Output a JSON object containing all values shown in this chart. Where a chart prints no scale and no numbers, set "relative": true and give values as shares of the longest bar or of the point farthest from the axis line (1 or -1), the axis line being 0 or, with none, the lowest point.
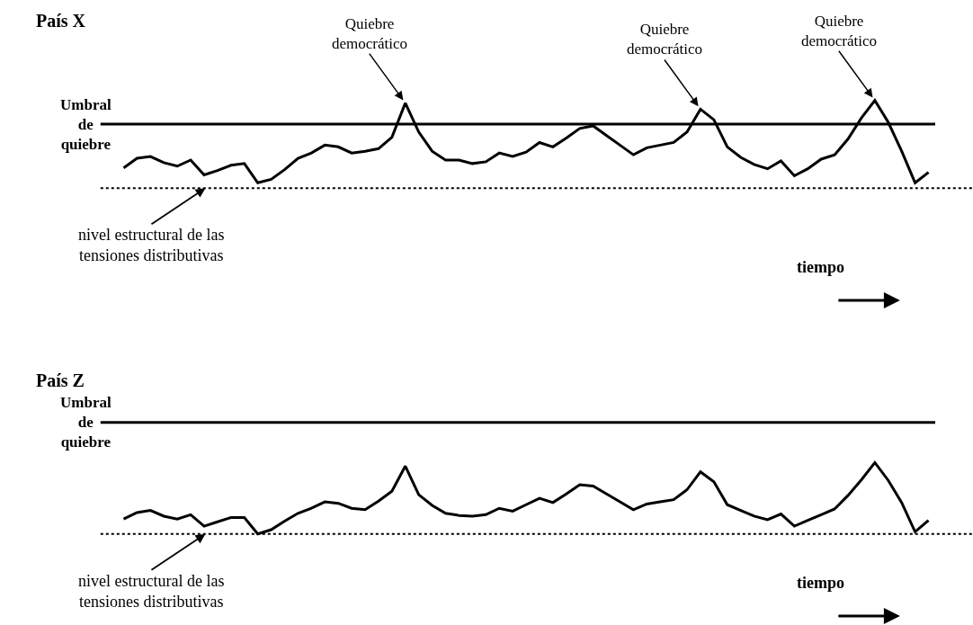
{
  "chart_data": [
    {
      "type": "line",
      "title": "País X",
      "relative": true,
      "marker": "none",
      "line_style": "solid",
      "categories": [
        null,
        null,
        null,
        null,
        null,
        null,
        null,
        null,
        null,
        null,
        null,
        null,
        null,
        null,
        null,
        null,
        null,
        null,
        null,
        null,
        null,
        null,
        null,
        null,
        null,
        null,
        null,
        null,
        null,
        null,
        null,
        null,
        null,
        null,
        null,
        null,
        null,
        null,
        null,
        null,
        null,
        null,
        null,
        null,
        null,
        null,
        null,
        null,
        null,
        null,
        null,
        null,
        null,
        null,
        null,
        null,
        null,
        null,
        null,
        null,
        null
      ],
      "series": [
        {
          "color": "#000000",
          "values": [
            0.23,
            0.34,
            0.36,
            0.29,
            0.25,
            0.32,
            0.15,
            0.2,
            0.26,
            0.28,
            0.06,
            0.1,
            0.21,
            0.34,
            0.4,
            0.49,
            0.47,
            0.4,
            0.42,
            0.45,
            0.58,
            0.97,
            0.64,
            0.42,
            0.32,
            0.32,
            0.28,
            0.3,
            0.4,
            0.36,
            0.41,
            0.52,
            0.47,
            0.57,
            0.68,
            0.71,
            0.6,
            0.49,
            0.38,
            0.46,
            0.49,
            0.52,
            0.64,
            0.9,
            0.78,
            0.47,
            0.35,
            0.27,
            0.22,
            0.31,
            0.14,
            0.22,
            0.33,
            0.38,
            0.56,
            0.8,
            1.0,
            0.75,
            0.42,
            0.06,
            0.18
          ]
        }
      ],
      "ref_lines": [
        {
          "axis": "y",
          "value": 0.73,
          "label": "Umbral de quiebre",
          "color": "#000000",
          "line_style": "solid"
        },
        {
          "axis": "y",
          "value": 0,
          "label": "nivel estructural de las tensiones distributivas",
          "color": "#000000",
          "line_style": "dotted"
        }
      ],
      "annotations": [
        "Quiebre democrático",
        "Quiebre democrático",
        "Quiebre democrático",
        "tiempo"
      ]
    },
    {
      "type": "line",
      "title": "País Z",
      "relative": true,
      "marker": "none",
      "line_style": "solid",
      "categories": [
        null,
        null,
        null,
        null,
        null,
        null,
        null,
        null,
        null,
        null,
        null,
        null,
        null,
        null,
        null,
        null,
        null,
        null,
        null,
        null,
        null,
        null,
        null,
        null,
        null,
        null,
        null,
        null,
        null,
        null,
        null,
        null,
        null,
        null,
        null,
        null,
        null,
        null,
        null,
        null,
        null,
        null,
        null,
        null,
        null,
        null,
        null,
        null,
        null,
        null,
        null,
        null,
        null,
        null,
        null,
        null,
        null,
        null,
        null,
        null,
        null
      ],
      "series": [
        {
          "color": "#000000",
          "values": [
            0.21,
            0.3,
            0.33,
            0.25,
            0.21,
            0.27,
            0.11,
            0.17,
            0.23,
            0.23,
            0.0,
            0.06,
            0.18,
            0.29,
            0.36,
            0.45,
            0.43,
            0.36,
            0.34,
            0.46,
            0.6,
            0.95,
            0.55,
            0.4,
            0.29,
            0.26,
            0.25,
            0.27,
            0.36,
            0.32,
            0.41,
            0.5,
            0.44,
            0.56,
            0.69,
            0.67,
            0.56,
            0.45,
            0.34,
            0.42,
            0.45,
            0.48,
            0.62,
            0.87,
            0.73,
            0.41,
            0.33,
            0.25,
            0.2,
            0.28,
            0.11,
            0.19,
            0.27,
            0.35,
            0.54,
            0.76,
            1.0,
            0.75,
            0.44,
            0.03,
            0.19
          ]
        }
      ],
      "ref_lines": [
        {
          "axis": "y",
          "value": 1.56,
          "label": "Umbral de quiebre",
          "color": "#000000",
          "line_style": "solid"
        },
        {
          "axis": "y",
          "value": 0,
          "label": "nivel estructural de las tensiones distributivas",
          "color": "#000000",
          "line_style": "dotted"
        }
      ],
      "annotations": [
        "tiempo"
      ]
    }
  ]
}
